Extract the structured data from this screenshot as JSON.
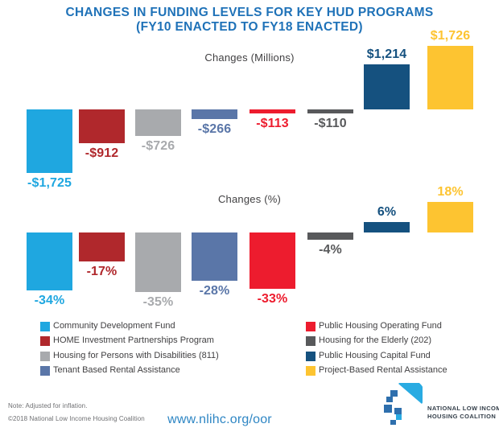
{
  "title": {
    "line1": "CHANGES IN FUNDING LEVELS FOR KEY HUD PROGRAMS",
    "line2": "(FY10 ENACTED TO FY18 ENACTED)"
  },
  "colors": {
    "title_blue": "#1F72B8",
    "light_blue": "#1FA7E0",
    "dark_red": "#B0282C",
    "gray": "#A8AAAD",
    "slate_blue": "#5A76A8",
    "red": "#ED1C2E",
    "dark_gray": "#58595B",
    "navy": "#15517F",
    "yellow": "#FDC431",
    "link_blue": "#2E86C4",
    "logo_medium_blue": "#2E6FAD",
    "logo_light_blue": "#29ABE2"
  },
  "chart_data": [
    {
      "type": "bar",
      "title": "Changes (Millions)",
      "categories": [
        "Community Development Fund",
        "HOME Investment Partnerships Program",
        "Housing for Persons with Disabilities (811)",
        "Tenant Based Rental Assistance",
        "Public Housing Operating Fund",
        "Housing for the Elderly (202)",
        "Public Housing Capital Fund",
        "Project-Based Rental Assistance"
      ],
      "values": [
        -1725,
        -912,
        -726,
        -266,
        -113,
        -110,
        1214,
        1726
      ],
      "labels": [
        "-$1,725",
        "-$912",
        "-$726",
        "-$266",
        "-$113",
        "-$110",
        "$1,214",
        "$1,726"
      ],
      "bar_colors": [
        "#1FA7E0",
        "#B0282C",
        "#A8AAAD",
        "#5A76A8",
        "#ED1C2E",
        "#58595B",
        "#15517F",
        "#FDC431"
      ],
      "units": "millions of dollars",
      "ylim": [
        -1800,
        1800
      ],
      "grid": false,
      "baseline": 0
    },
    {
      "type": "bar",
      "title": "Changes (%)",
      "categories": [
        "Community Development Fund",
        "HOME Investment Partnerships Program",
        "Housing for Persons with Disabilities (811)",
        "Tenant Based Rental Assistance",
        "Public Housing Operating Fund",
        "Housing for the Elderly (202)",
        "Public Housing Capital Fund",
        "Project-Based Rental Assistance"
      ],
      "values": [
        -34,
        -17,
        -35,
        -28,
        -33,
        -4,
        6,
        18
      ],
      "labels": [
        "-34%",
        "-17%",
        "-35%",
        "-28%",
        "-33%",
        "-4%",
        "6%",
        "18%"
      ],
      "bar_colors": [
        "#1FA7E0",
        "#B0282C",
        "#A8AAAD",
        "#5A76A8",
        "#ED1C2E",
        "#58595B",
        "#15517F",
        "#FDC431"
      ],
      "units": "percent",
      "ylim": [
        -40,
        25
      ],
      "grid": false,
      "baseline": 0
    }
  ],
  "legend": {
    "left": [
      {
        "label": "Community Development Fund",
        "color": "#1FA7E0"
      },
      {
        "label": "HOME Investment Partnerships Program",
        "color": "#B0282C"
      },
      {
        "label": "Housing for Persons with Disabilities (811)",
        "color": "#A8AAAD"
      },
      {
        "label": "Tenant Based Rental Assistance",
        "color": "#5A76A8"
      }
    ],
    "right": [
      {
        "label": "Public Housing Operating Fund",
        "color": "#ED1C2E"
      },
      {
        "label": "Housing for the Elderly (202)",
        "color": "#58595B"
      },
      {
        "label": "Public Housing Capital Fund",
        "color": "#15517F"
      },
      {
        "label": "Project-Based Rental Assistance",
        "color": "#FDC431"
      }
    ]
  },
  "footer": {
    "note": "Note: Adjusted for inflation.",
    "copyright": "©2018 National Low Income Housing Coalition",
    "link": "www.nlihc.org/oor",
    "logo_line1": "NATIONAL LOW INCOME",
    "logo_line2": "HOUSING COALITION"
  }
}
